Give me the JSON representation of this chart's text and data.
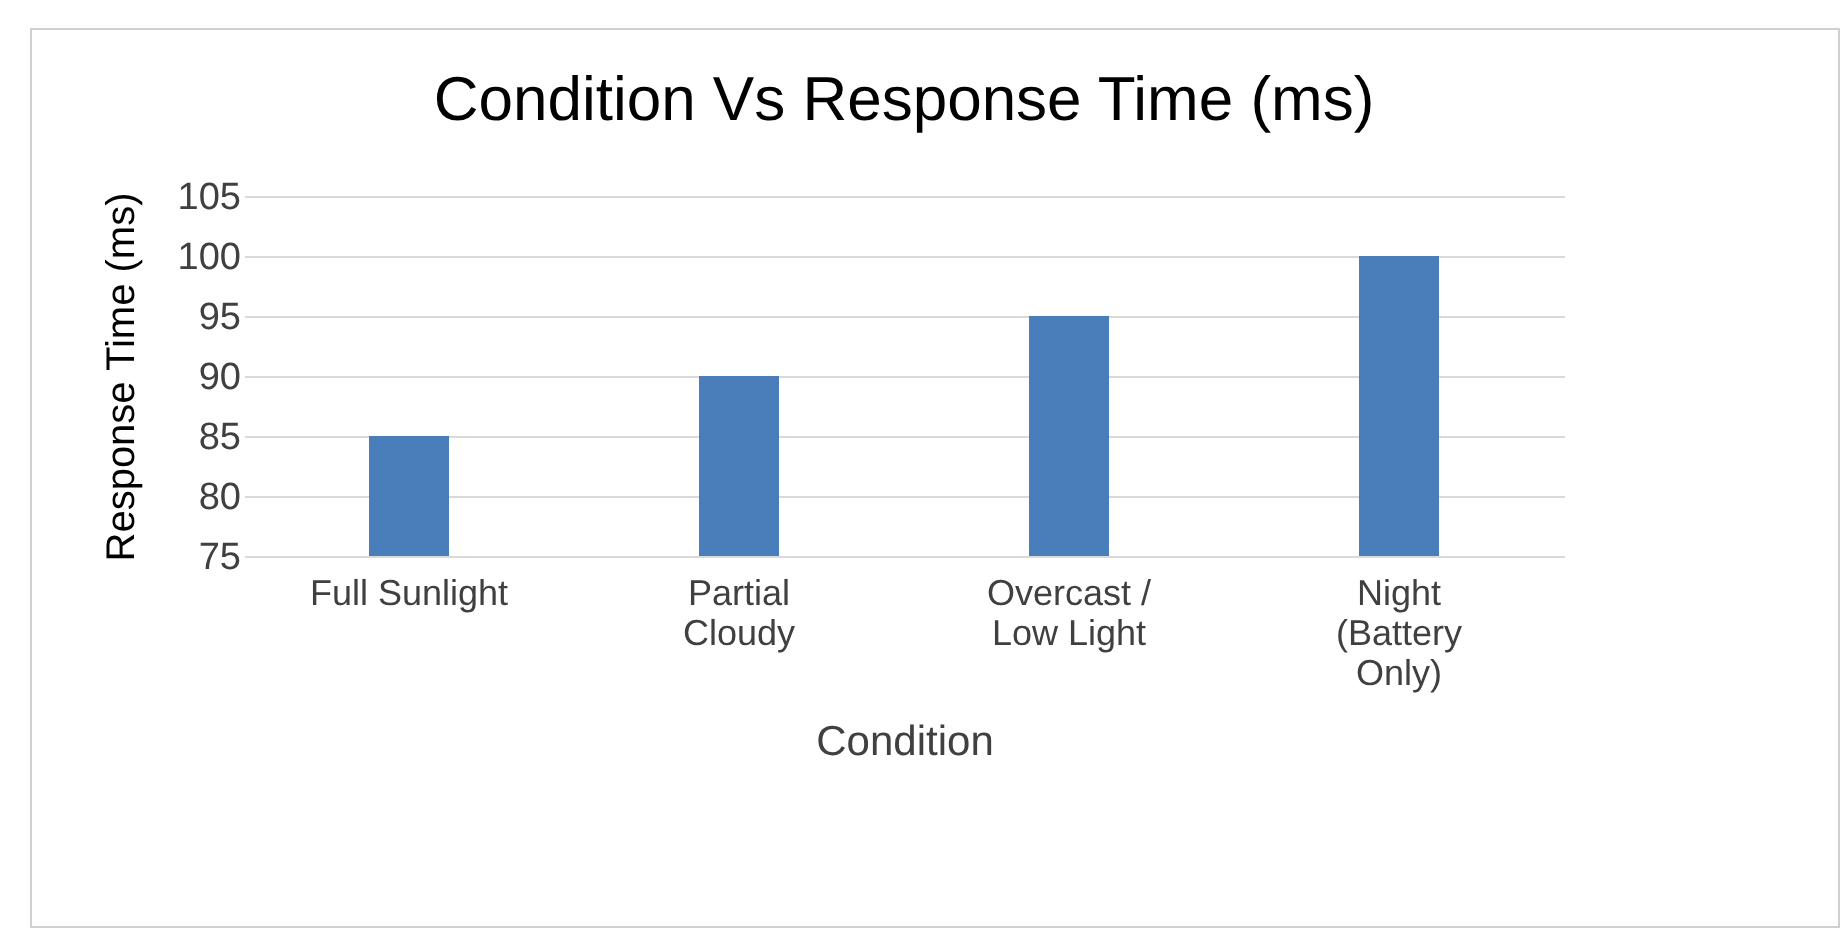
{
  "chart_data": {
    "type": "bar",
    "title": "Condition Vs Response Time (ms)",
    "xlabel": "Condition",
    "ylabel": "Response Time (ms)",
    "categories": [
      "Full Sunlight",
      "Partial Cloudy",
      "Overcast / Low Light",
      "Night (Battery Only)"
    ],
    "values": [
      85,
      90,
      95,
      100
    ],
    "color": "#4a7ebb",
    "ylim": [
      75,
      105
    ],
    "yticks": [
      75,
      80,
      85,
      90,
      95,
      100,
      105
    ],
    "grid": "y"
  }
}
